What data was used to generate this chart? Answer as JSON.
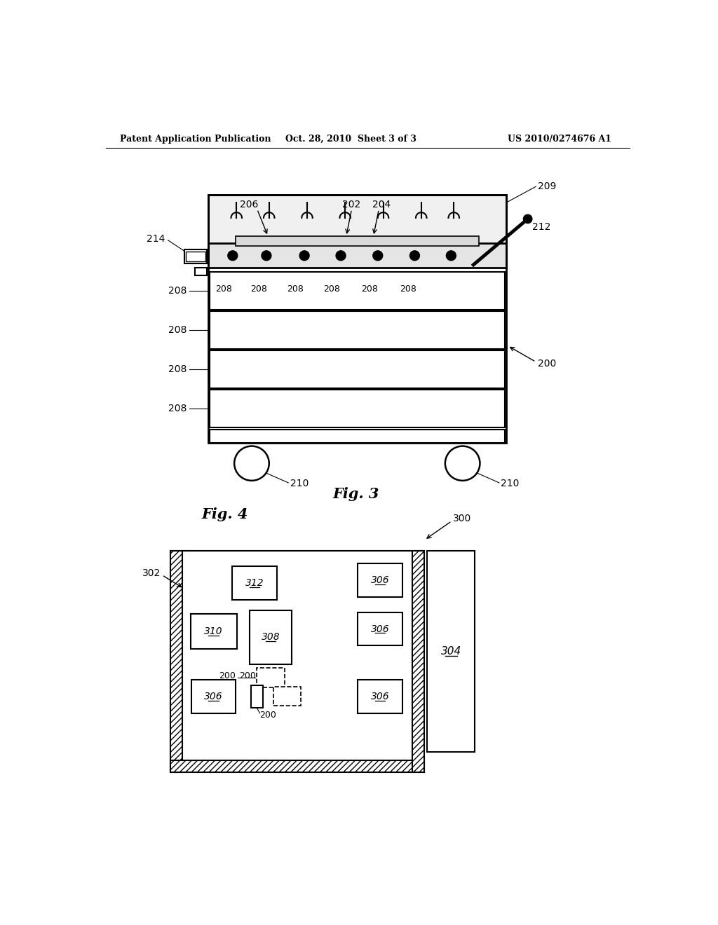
{
  "header_left": "Patent Application Publication",
  "header_mid": "Oct. 28, 2010  Sheet 3 of 3",
  "header_right": "US 2010/0274676 A1",
  "fig3_label": "Fig. 3",
  "fig4_label": "Fig. 4",
  "bg_color": "#ffffff",
  "line_color": "#000000"
}
